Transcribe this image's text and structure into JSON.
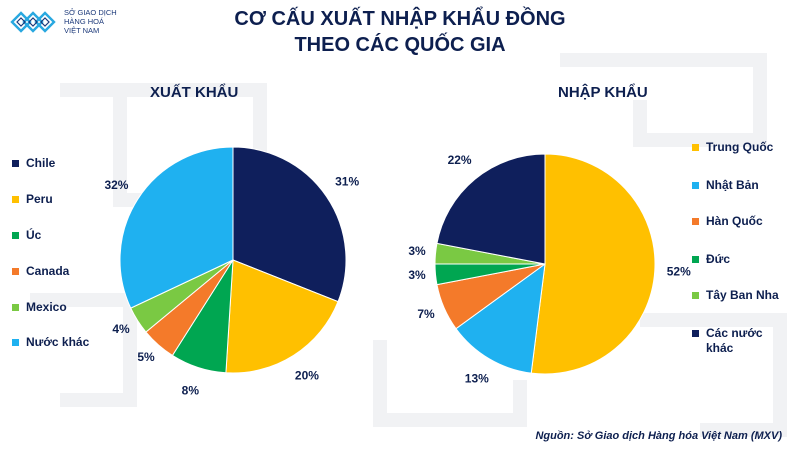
{
  "header": {
    "logo_lines": [
      "SỞ GIAO DỊCH",
      "HÀNG HOÁ",
      "VIỆT NAM"
    ],
    "title_line1": "CƠ CẤU XUẤT NHẬP KHẨU ĐỒNG",
    "title_line2": "THEO CÁC QUỐC GIA"
  },
  "chart_data": [
    {
      "type": "pie",
      "title": "XUẤT KHẨU",
      "slices": [
        {
          "label": "Chile",
          "value": 31,
          "display": "31%",
          "color": "#0f1f5c"
        },
        {
          "label": "Peru",
          "value": 20,
          "display": "20%",
          "color": "#ffc000"
        },
        {
          "label": "Úc",
          "value": 8,
          "display": "8%",
          "color": "#00a651"
        },
        {
          "label": "Canada",
          "value": 5,
          "display": "5%",
          "color": "#f47a2a"
        },
        {
          "label": "Mexico",
          "value": 4,
          "display": "4%",
          "color": "#7ac943"
        },
        {
          "label": "Nước khác",
          "value": 32,
          "display": "32%",
          "color": "#1fb1f0"
        }
      ],
      "legend_position": "left"
    },
    {
      "type": "pie",
      "title": "NHẬP KHẨU",
      "slices": [
        {
          "label": "Trung Quốc",
          "value": 52,
          "display": "52%",
          "color": "#ffc000"
        },
        {
          "label": "Nhật Bản",
          "value": 13,
          "display": "13%",
          "color": "#1fb1f0"
        },
        {
          "label": "Hàn Quốc",
          "value": 7,
          "display": "7%",
          "color": "#f47a2a"
        },
        {
          "label": "Đức",
          "value": 3,
          "display": "3%",
          "color": "#00a651"
        },
        {
          "label": "Tây Ban Nha",
          "value": 3,
          "display": "3%",
          "color": "#7ac943"
        },
        {
          "label": "Các nước khác",
          "value": 22,
          "display": "22%",
          "color": "#0f1f5c"
        }
      ],
      "legend_position": "right"
    }
  ],
  "footer": {
    "source": "Nguồn: Sở Giao dịch Hàng hóa Việt Nam (MXV)"
  }
}
